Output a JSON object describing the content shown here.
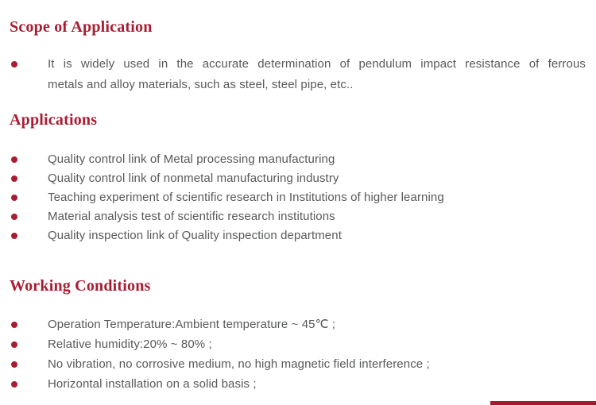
{
  "page": {
    "accent_color": "#A91D33",
    "body_text_color": "#58595B",
    "footer_bar_color": "#9E1B30"
  },
  "sections": {
    "scope": {
      "heading": "Scope of Application",
      "bullet_lines": [
        "It is widely used in the accurate determination of pendulum impact resistance of ferrous",
        "metals and alloy materials, such as steel, steel pipe, etc.."
      ]
    },
    "applications": {
      "heading": "Applications",
      "bullets": [
        "Quality control link of Metal processing manufacturing",
        "Quality control link of nonmetal manufacturing industry",
        "Teaching experiment of scientific research in Institutions of higher learning",
        "Material analysis test of scientific research institutions",
        "Quality inspection link of Quality inspection department"
      ]
    },
    "working_conditions": {
      "heading": "Working Conditions",
      "bullets": [
        "Operation Temperature:Ambient temperature ~ 45℃ ;",
        "Relative humidity:20% ~ 80% ;",
        "No vibration, no corrosive medium, no high magnetic field interference ;",
        "Horizontal installation on a solid basis ;"
      ]
    }
  }
}
